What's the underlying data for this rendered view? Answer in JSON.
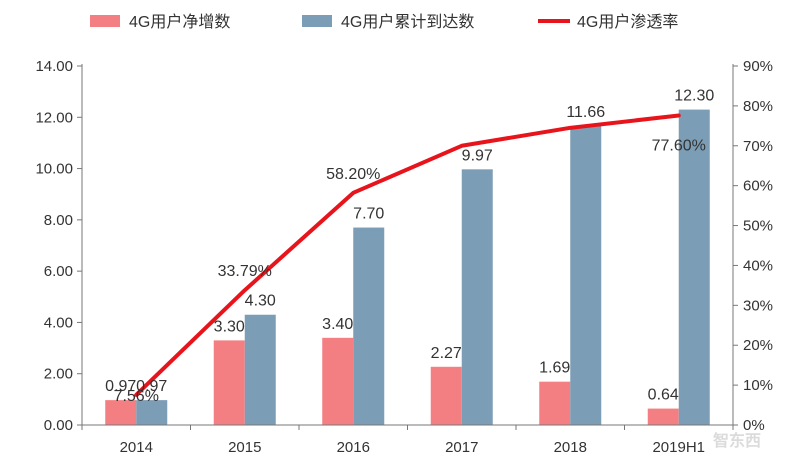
{
  "chart_data": {
    "type": "bar",
    "categories": [
      "2014",
      "2015",
      "2016",
      "2017",
      "2018",
      "2019H1"
    ],
    "series": [
      {
        "name": "4G用户净增数",
        "type": "bar",
        "axis": "left",
        "color": "#f47f82",
        "values": [
          0.97,
          3.3,
          3.4,
          2.27,
          1.69,
          0.64
        ],
        "labels": [
          "0.97",
          "3.30",
          "3.40",
          "2.27",
          "1.69",
          "0.64"
        ]
      },
      {
        "name": "4G用户累计到达数",
        "type": "bar",
        "axis": "left",
        "color": "#7b9db6",
        "values": [
          0.97,
          4.3,
          7.7,
          9.97,
          11.66,
          12.3
        ],
        "labels": [
          "0.97",
          "4.30",
          "7.70",
          "9.97",
          "11.66",
          "12.30"
        ]
      },
      {
        "name": "4G用户渗透率",
        "type": "line",
        "axis": "right",
        "color": "#e8141c",
        "values": [
          7.56,
          33.79,
          58.2,
          70.0,
          74.5,
          77.6
        ],
        "labels": [
          "7.56%",
          "33.79%",
          "58.20%",
          "",
          "",
          "77.60%"
        ]
      }
    ],
    "y_left": {
      "min": 0,
      "max": 14,
      "step": 2,
      "ticks": [
        "0.00",
        "2.00",
        "4.00",
        "6.00",
        "8.00",
        "10.00",
        "12.00",
        "14.00"
      ]
    },
    "y_right": {
      "min": 0,
      "max": 90,
      "step": 10,
      "ticks": [
        "0%",
        "10%",
        "20%",
        "30%",
        "40%",
        "50%",
        "60%",
        "70%",
        "80%",
        "90%"
      ]
    },
    "title": "",
    "xlabel": "",
    "ylabel": "",
    "legend_position": "top",
    "grid": false
  },
  "watermark": "智东西"
}
